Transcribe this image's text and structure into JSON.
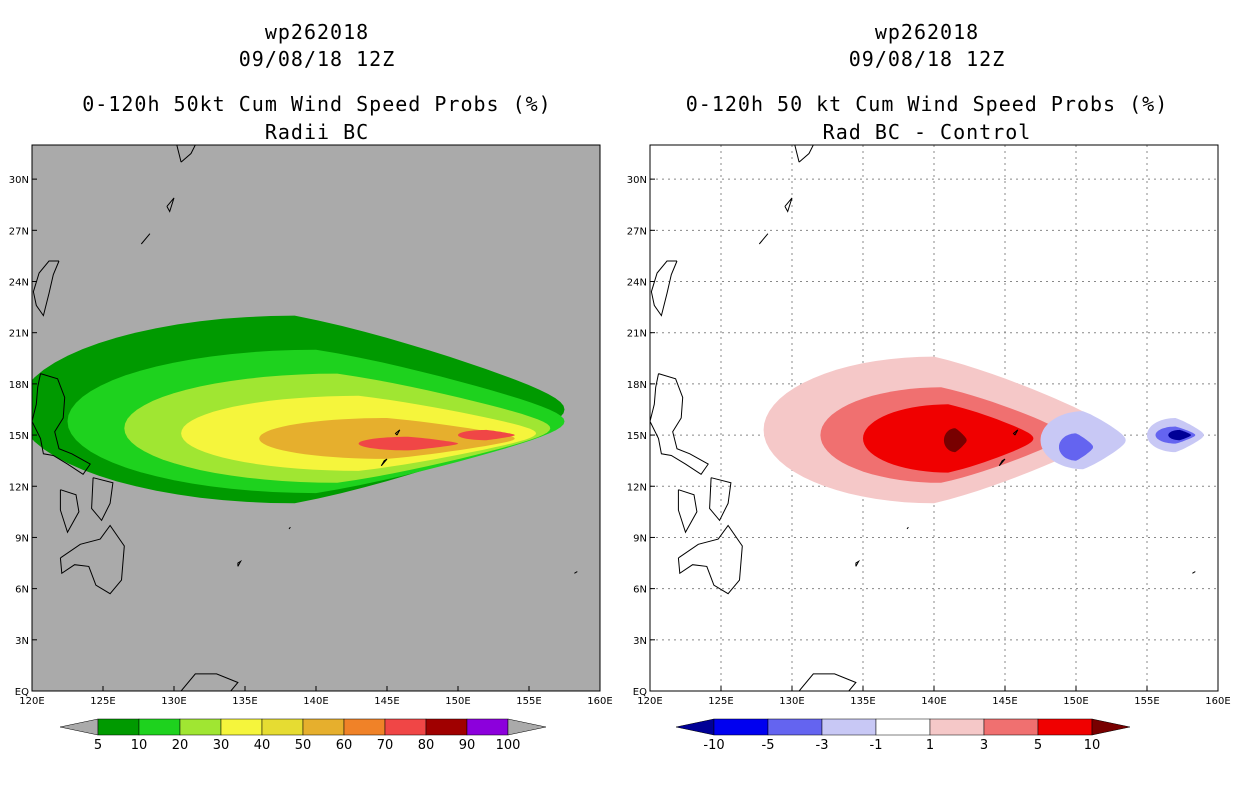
{
  "colors": {
    "panel_left_bg": "#aaaaaa",
    "panel_right_bg": "#ffffff",
    "grid": "#888888"
  },
  "chart_data": [
    {
      "type": "heatmap",
      "storm_id": "wp262018",
      "datetime": "09/08/18 12Z",
      "title": "0-120h 50kt Cum Wind Speed Probs (%)",
      "subtitle": "Radii BC",
      "x_ticks": [
        "120E",
        "125E",
        "130E",
        "135E",
        "140E",
        "145E",
        "150E",
        "155E",
        "160E"
      ],
      "y_ticks": [
        "EQ",
        "3N",
        "6N",
        "9N",
        "12N",
        "15N",
        "18N",
        "21N",
        "24N",
        "27N",
        "30N"
      ],
      "xlim": [
        120,
        160
      ],
      "ylim": [
        0,
        32
      ],
      "grid": false,
      "colorbar": {
        "labels": [
          "5",
          "10",
          "20",
          "30",
          "40",
          "50",
          "60",
          "70",
          "80",
          "90",
          "100"
        ],
        "colors": [
          "#009a00",
          "#1ed21e",
          "#a0e632",
          "#f5f53c",
          "#e6dc32",
          "#e6af2d",
          "#f08228",
          "#f04646",
          "#a00000",
          "#8c00dc"
        ],
        "end_colors": [
          "#aaaaaa",
          "#aaaaaa"
        ]
      },
      "fields": [
        {
          "level": "5",
          "color": "#009a00",
          "center": [
            138.5,
            16.5
          ],
          "rx": 19.5,
          "ry": 5.5,
          "tip": [
            157.5,
            15.0
          ],
          "lon_start": 124.0
        },
        {
          "level": "10",
          "color": "#1ed21e",
          "center": [
            140.0,
            15.8
          ],
          "rx": 17.5,
          "ry": 4.2
        },
        {
          "level": "20",
          "color": "#a0e632",
          "center": [
            141.5,
            15.4
          ],
          "rx": 15.0,
          "ry": 3.2
        },
        {
          "level": "30",
          "color": "#f5f53c",
          "center": [
            143.0,
            15.1
          ],
          "rx": 12.5,
          "ry": 2.2
        },
        {
          "level": "50",
          "color": "#e6af2d",
          "center": [
            145.0,
            14.8
          ],
          "rx": 9.0,
          "ry": 1.2
        },
        {
          "level": "70",
          "color": "#f04646",
          "center": [
            146.5,
            14.5
          ],
          "rx": 3.5,
          "ry": 0.4
        },
        {
          "level": "70b",
          "color": "#f04646",
          "center": [
            152.0,
            15.0
          ],
          "rx": 2.0,
          "ry": 0.3
        }
      ]
    },
    {
      "type": "heatmap",
      "storm_id": "wp262018",
      "datetime": "09/08/18 12Z",
      "title": "0-120h 50 kt Cum Wind Speed Probs (%)",
      "subtitle": "Rad BC - Control",
      "x_ticks": [
        "120E",
        "125E",
        "130E",
        "135E",
        "140E",
        "145E",
        "150E",
        "155E",
        "160E"
      ],
      "y_ticks": [
        "EQ",
        "3N",
        "6N",
        "9N",
        "12N",
        "15N",
        "18N",
        "21N",
        "24N",
        "27N",
        "30N"
      ],
      "xlim": [
        120,
        160
      ],
      "ylim": [
        0,
        32
      ],
      "grid": true,
      "colorbar": {
        "labels": [
          "-10",
          "-5",
          "-3",
          "-1",
          "1",
          "3",
          "5",
          "10"
        ],
        "colors": [
          "#0000f0",
          "#6464f0",
          "#c8c8f5",
          "#ffffff",
          "#f5c8c8",
          "#f07070",
          "#f00000"
        ],
        "end_colors": [
          "#000096",
          "#780000"
        ]
      },
      "fields": [
        {
          "level": "1",
          "color": "#f5c8c8",
          "center": [
            140.0,
            15.3
          ],
          "rx": 12.0,
          "ry": 4.3
        },
        {
          "level": "3",
          "color": "#f07070",
          "center": [
            140.5,
            15.0
          ],
          "rx": 8.5,
          "ry": 2.8
        },
        {
          "level": "5",
          "color": "#f00000",
          "center": [
            141.0,
            14.8
          ],
          "rx": 6.0,
          "ry": 2.0
        },
        {
          "level": "10",
          "color": "#780000",
          "center": [
            141.5,
            14.7
          ],
          "rx": 0.8,
          "ry": 0.7
        },
        {
          "level": "-1",
          "color": "#c8c8f5",
          "center": [
            150.5,
            14.7
          ],
          "rx": 3.0,
          "ry": 1.7
        },
        {
          "level": "-1b",
          "color": "#c8c8f5",
          "center": [
            157.0,
            15.0
          ],
          "rx": 2.0,
          "ry": 1.0
        },
        {
          "level": "-3",
          "color": "#6464f0",
          "center": [
            150.0,
            14.3
          ],
          "rx": 1.2,
          "ry": 0.8
        },
        {
          "level": "-3b",
          "color": "#6464f0",
          "center": [
            157.0,
            15.0
          ],
          "rx": 1.4,
          "ry": 0.5
        },
        {
          "level": "-10",
          "color": "#000096",
          "center": [
            157.3,
            15.0
          ],
          "rx": 0.8,
          "ry": 0.3
        }
      ]
    }
  ]
}
